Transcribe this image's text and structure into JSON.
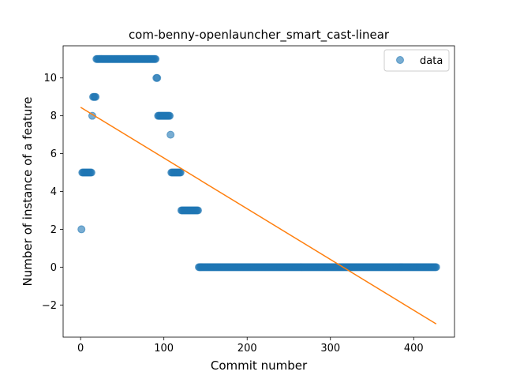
{
  "chart_data": {
    "type": "scatter",
    "title": "com-benny-openlauncher_smart_cast-linear",
    "xlabel": "Commit number",
    "ylabel": "Number of instance of a feature",
    "xlim": [
      -21,
      449
    ],
    "ylim": [
      -3.7,
      11.7
    ],
    "xticks": [
      0,
      100,
      200,
      300,
      400
    ],
    "yticks": [
      -2,
      0,
      2,
      4,
      6,
      8,
      10
    ],
    "xtick_labels": [
      "0",
      "100",
      "200",
      "300",
      "400"
    ],
    "ytick_labels": [
      "−2",
      "0",
      "2",
      "4",
      "6",
      "8",
      "10"
    ],
    "grid": false,
    "legend": {
      "position": "top-right",
      "entries": [
        "data"
      ]
    },
    "colors": {
      "data": "#1f77b4",
      "fit": "#ff7f0e"
    },
    "series": [
      {
        "name": "data",
        "kind": "scatter",
        "segments": [
          {
            "x_start": 1,
            "x_end": 1,
            "y": 2
          },
          {
            "x_start": 2,
            "x_end": 13,
            "y": 5
          },
          {
            "x_start": 14,
            "x_end": 14,
            "y": 8
          },
          {
            "x_start": 15,
            "x_end": 18,
            "y": 9
          },
          {
            "x_start": 19,
            "x_end": 90,
            "y": 11
          },
          {
            "x_start": 91,
            "x_end": 92,
            "y": 10
          },
          {
            "x_start": 93,
            "x_end": 107,
            "y": 8
          },
          {
            "x_start": 108,
            "x_end": 108,
            "y": 7
          },
          {
            "x_start": 109,
            "x_end": 120,
            "y": 5
          },
          {
            "x_start": 121,
            "x_end": 141,
            "y": 3
          },
          {
            "x_start": 142,
            "x_end": 427,
            "y": 0
          }
        ]
      },
      {
        "kind": "line",
        "x": [
          0,
          427
        ],
        "y": [
          8.45,
          -3.0
        ]
      }
    ]
  }
}
